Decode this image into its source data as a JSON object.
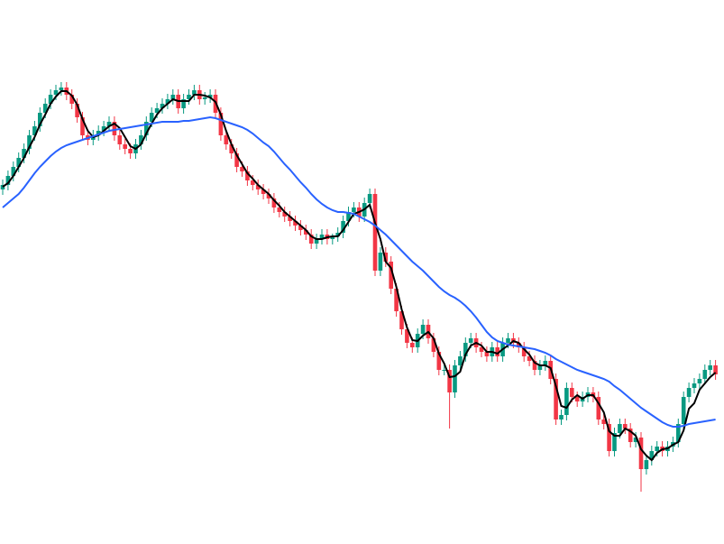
{
  "chart_data": {
    "type": "candlestick",
    "up_color": "#089981",
    "down_color": "#f23645",
    "ylim": [
      0,
      600
    ],
    "open": [
      390,
      395,
      405,
      415,
      425,
      435,
      450,
      460,
      475,
      485,
      495,
      500,
      503,
      495,
      485,
      470,
      450,
      445,
      450,
      455,
      460,
      465,
      450,
      440,
      435,
      430,
      440,
      450,
      465,
      475,
      480,
      485,
      490,
      495,
      480,
      490,
      495,
      500,
      490,
      492,
      495,
      475,
      450,
      440,
      430,
      415,
      410,
      400,
      395,
      390,
      385,
      380,
      370,
      365,
      360,
      355,
      350,
      345,
      340,
      330,
      335,
      340,
      335,
      338,
      342,
      355,
      365,
      370,
      360,
      375,
      385,
      300,
      320,
      310,
      280,
      255,
      235,
      220,
      215,
      230,
      240,
      225,
      210,
      190,
      190,
      165,
      195,
      205,
      220,
      225,
      215,
      210,
      205,
      215,
      205,
      220,
      225,
      220,
      215,
      205,
      200,
      190,
      195,
      200,
      180,
      135,
      140,
      170,
      160,
      155,
      160,
      165,
      160,
      135,
      130,
      100,
      120,
      130,
      125,
      110,
      115,
      80,
      90,
      100,
      105,
      100,
      105,
      110,
      130,
      160,
      170,
      175,
      180,
      190,
      195
    ],
    "high": [
      401,
      411,
      421,
      431,
      441,
      456,
      466,
      481,
      491,
      501,
      506,
      509,
      509,
      501,
      491,
      476,
      456,
      456,
      461,
      466,
      471,
      471,
      456,
      446,
      441,
      446,
      456,
      471,
      481,
      486,
      491,
      496,
      501,
      501,
      496,
      501,
      506,
      506,
      498,
      501,
      501,
      481,
      456,
      446,
      436,
      421,
      416,
      406,
      401,
      396,
      391,
      386,
      376,
      371,
      366,
      361,
      356,
      351,
      346,
      341,
      346,
      346,
      341,
      348,
      361,
      371,
      376,
      376,
      381,
      391,
      391,
      326,
      326,
      316,
      286,
      261,
      241,
      226,
      236,
      246,
      246,
      231,
      216,
      196,
      196,
      201,
      211,
      226,
      231,
      231,
      221,
      216,
      221,
      221,
      226,
      231,
      231,
      226,
      221,
      211,
      206,
      201,
      206,
      206,
      186,
      146,
      176,
      176,
      166,
      166,
      171,
      171,
      166,
      141,
      136,
      126,
      136,
      136,
      131,
      121,
      121,
      96,
      106,
      111,
      111,
      111,
      116,
      136,
      166,
      176,
      181,
      186,
      196,
      201,
      201
    ],
    "low": [
      384,
      389,
      399,
      409,
      419,
      429,
      444,
      454,
      469,
      479,
      489,
      494,
      489,
      479,
      464,
      444,
      439,
      439,
      444,
      449,
      454,
      444,
      434,
      429,
      424,
      424,
      434,
      444,
      459,
      469,
      474,
      479,
      484,
      474,
      474,
      484,
      489,
      484,
      484,
      486,
      469,
      444,
      434,
      424,
      409,
      404,
      394,
      389,
      384,
      379,
      374,
      364,
      359,
      354,
      349,
      344,
      339,
      334,
      324,
      324,
      329,
      329,
      329,
      332,
      336,
      349,
      359,
      354,
      354,
      369,
      294,
      294,
      304,
      274,
      249,
      229,
      214,
      209,
      209,
      224,
      219,
      204,
      184,
      184,
      125,
      159,
      189,
      199,
      214,
      209,
      204,
      199,
      199,
      199,
      199,
      214,
      214,
      209,
      199,
      194,
      184,
      184,
      189,
      174,
      129,
      129,
      134,
      154,
      149,
      149,
      154,
      154,
      129,
      124,
      94,
      94,
      114,
      119,
      104,
      104,
      55,
      74,
      84,
      94,
      94,
      94,
      99,
      104,
      124,
      154,
      164,
      169,
      174,
      184,
      179
    ],
    "close": [
      395,
      405,
      415,
      425,
      435,
      450,
      460,
      475,
      485,
      495,
      500,
      503,
      495,
      485,
      470,
      450,
      445,
      450,
      455,
      460,
      465,
      450,
      440,
      435,
      430,
      440,
      450,
      465,
      475,
      480,
      485,
      490,
      495,
      480,
      490,
      495,
      500,
      490,
      492,
      495,
      475,
      450,
      440,
      430,
      415,
      410,
      400,
      395,
      390,
      385,
      380,
      370,
      365,
      360,
      355,
      350,
      345,
      340,
      330,
      335,
      340,
      335,
      338,
      342,
      355,
      365,
      370,
      360,
      375,
      385,
      300,
      320,
      310,
      280,
      255,
      235,
      220,
      215,
      230,
      240,
      225,
      210,
      190,
      190,
      165,
      195,
      205,
      220,
      225,
      215,
      210,
      205,
      215,
      205,
      220,
      225,
      220,
      215,
      205,
      200,
      190,
      195,
      200,
      180,
      135,
      140,
      170,
      160,
      155,
      160,
      165,
      160,
      135,
      130,
      100,
      120,
      130,
      125,
      110,
      115,
      80,
      90,
      100,
      105,
      100,
      105,
      110,
      130,
      160,
      170,
      175,
      180,
      190,
      195,
      185
    ],
    "lines": [
      {
        "color": "#000000",
        "values": [
          393,
          397,
          405,
          415,
          425,
          437,
          448,
          462,
          473,
          485,
          493,
          499,
          499,
          494,
          484,
          468,
          455,
          448,
          450,
          455,
          460,
          463,
          458,
          448,
          438,
          435,
          440,
          452,
          463,
          473,
          480,
          485,
          490,
          488,
          488,
          488,
          495,
          495,
          494,
          492,
          487,
          473,
          455,
          440,
          428,
          418,
          408,
          402,
          395,
          390,
          385,
          378,
          372,
          365,
          360,
          355,
          350,
          345,
          338,
          335,
          335,
          337,
          338,
          338,
          345,
          354,
          363,
          365,
          368,
          373,
          353,
          335,
          310,
          303,
          282,
          257,
          237,
          223,
          222,
          228,
          232,
          225,
          208,
          197,
          182,
          183,
          188,
          207,
          217,
          220,
          217,
          210,
          210,
          208,
          213,
          217,
          222,
          220,
          213,
          207,
          198,
          195,
          195,
          192,
          172,
          150,
          148,
          157,
          162,
          158,
          162,
          162,
          153,
          143,
          122,
          117,
          117,
          125,
          122,
          117,
          102,
          95,
          90,
          98,
          102,
          103,
          107,
          110,
          123,
          147,
          153,
          168,
          175,
          182,
          187
        ]
      },
      {
        "color": "#2962ff",
        "values": [
          370,
          375,
          380,
          385,
          392,
          400,
          408,
          415,
          421,
          427,
          432,
          436,
          439,
          441,
          443,
          445,
          447,
          449,
          451,
          453,
          455,
          456,
          457,
          458,
          459,
          460,
          461,
          462,
          463,
          464,
          465,
          465,
          465,
          465,
          466,
          466,
          467,
          468,
          469,
          470,
          469,
          467,
          465,
          463,
          461,
          459,
          456,
          452,
          447,
          442,
          438,
          432,
          425,
          418,
          412,
          405,
          398,
          392,
          385,
          379,
          374,
          370,
          367,
          365,
          365,
          364,
          363,
          360,
          357,
          354,
          350,
          345,
          340,
          334,
          328,
          322,
          316,
          310,
          305,
          300,
          294,
          288,
          282,
          277,
          273,
          270,
          266,
          261,
          255,
          248,
          240,
          232,
          226,
          222,
          220,
          218,
          217,
          216,
          215,
          214,
          213,
          211,
          209,
          206,
          202,
          199,
          196,
          193,
          190,
          188,
          186,
          184,
          182,
          180,
          177,
          172,
          168,
          163,
          158,
          153,
          148,
          144,
          140,
          136,
          132,
          129,
          127,
          127,
          128,
          130,
          131,
          132,
          133,
          134,
          135
        ]
      }
    ]
  }
}
